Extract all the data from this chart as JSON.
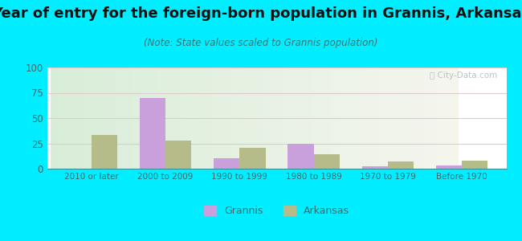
{
  "title": "Year of entry for the foreign-born population in Grannis, Arkansas",
  "subtitle": "(Note: State values scaled to Grannis population)",
  "categories": [
    "2010 or later",
    "2000 to 2009",
    "1990 to 1999",
    "1980 to 1989",
    "1970 to 1979",
    "Before 1970"
  ],
  "grannis_values": [
    0,
    70,
    10,
    25,
    2,
    3
  ],
  "arkansas_values": [
    33,
    28,
    21,
    14,
    7,
    8
  ],
  "grannis_color": "#c9a0dc",
  "arkansas_color": "#b5bc8a",
  "ylim": [
    0,
    100
  ],
  "yticks": [
    0,
    25,
    50,
    75,
    100
  ],
  "background_outer": "#00eeff",
  "title_fontsize": 13,
  "subtitle_fontsize": 8.5,
  "bar_width": 0.35,
  "title_color": "#111111",
  "subtitle_color": "#337777",
  "tick_color": "#446666",
  "grid_color": "#ddcccc",
  "watermark_color": "#aabbbb"
}
